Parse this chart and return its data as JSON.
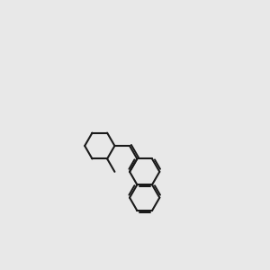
{
  "bg_color": "#e8e8e8",
  "bond_color": "#1a1a1a",
  "bond_width": 1.5,
  "figsize": [
    3.0,
    3.0
  ],
  "dpi": 100,
  "N_color": "#4040c0",
  "O_color": "#cc0000",
  "Cl_color": "#00aa00",
  "H_color": "#50a0a0"
}
